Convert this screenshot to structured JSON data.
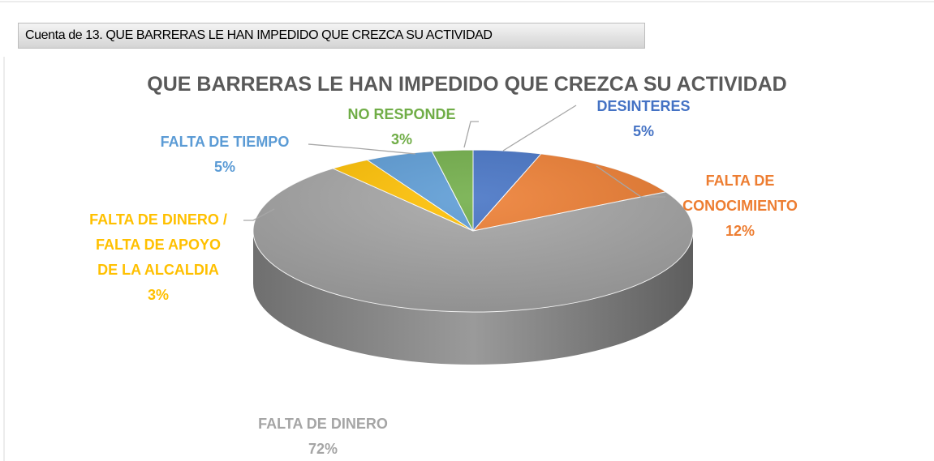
{
  "header": "Cuenta de 13. QUE BARRERAS LE HAN IMPEDIDO QUE CREZCA SU ACTIVIDAD",
  "chart_data": {
    "type": "pie",
    "title": "QUE BARRERAS LE HAN IMPEDIDO QUE CREZCA SU ACTIVIDAD",
    "categories": [
      "DESINTERES",
      "FALTA DE CONOCIMIENTO",
      "FALTA DE DINERO",
      "FALTA DE DINERO / FALTA DE APOYO DE LA ALCALDIA",
      "FALTA DE TIEMPO",
      "NO RESPONDE"
    ],
    "values": [
      5,
      12,
      72,
      3,
      5,
      3
    ],
    "value_labels": [
      "5%",
      "12%",
      "72%",
      "3%",
      "5%",
      "3%"
    ],
    "colors": [
      "#4472c4",
      "#ed7d31",
      "#a5a5a5",
      "#ffc000",
      "#5b9bd5",
      "#70ad47"
    ]
  }
}
